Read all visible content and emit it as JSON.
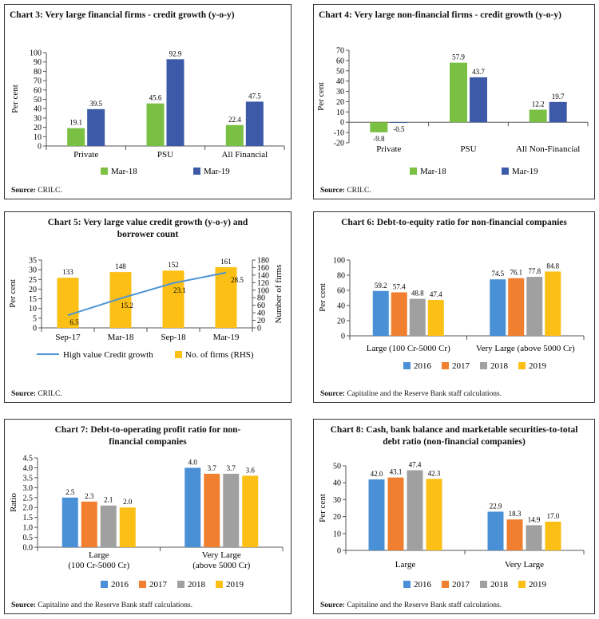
{
  "chart_data": [
    {
      "type": "bar",
      "title": "Chart 3: Very large financial firms - credit growth (y-o-y)",
      "ylabel": "Per cent",
      "ylim": [
        0,
        100
      ],
      "yticks": [
        "0",
        "10",
        "20",
        "30",
        "40",
        "50",
        "60",
        "70",
        "80",
        "90",
        "100"
      ],
      "categories": [
        "Private",
        "PSU",
        "All Financial"
      ],
      "series": [
        {
          "name": "Mar-18",
          "color": "#7ac143",
          "values": [
            19.1,
            45.6,
            22.4
          ],
          "labels": [
            "19.1",
            "45.6",
            "22.4"
          ]
        },
        {
          "name": "Mar-19",
          "color": "#3c5aa8",
          "values": [
            39.5,
            92.9,
            47.5
          ],
          "labels": [
            "39.5",
            "92.9",
            "47.5"
          ]
        }
      ],
      "legend": "bottom",
      "source_label": "Source:",
      "source_text": "CRILC."
    },
    {
      "type": "bar",
      "title": "Chart 4: Very large non-financial firms - credit growth (y-o-y)",
      "ylabel": "Per cent",
      "ylim": [
        -20,
        70
      ],
      "yticks": [
        "-20",
        "-10",
        "0",
        "10",
        "20",
        "30",
        "40",
        "50",
        "60",
        "70"
      ],
      "categories": [
        "Private",
        "PSU",
        "All Non-Financial"
      ],
      "series": [
        {
          "name": "Mar-18",
          "color": "#7ac143",
          "values": [
            -9.8,
            57.9,
            12.2
          ],
          "labels": [
            "-9.8",
            "57.9",
            "12.2"
          ]
        },
        {
          "name": "Mar-19",
          "color": "#3c5aa8",
          "values": [
            -0.5,
            43.7,
            19.7
          ],
          "labels": [
            "-0.5",
            "43.7",
            "19.7"
          ]
        }
      ],
      "legend": "bottom",
      "source_label": "Source:",
      "source_text": "CRILC."
    },
    {
      "type": "bar+line",
      "title": "Chart 5: Very large value credit growth (y-o-y) and borrower count",
      "ylabel": "Per cent",
      "y2label": "Number of firms",
      "ylim": [
        0,
        35
      ],
      "y2lim": [
        0,
        180
      ],
      "yticks": [
        "0",
        "5",
        "10",
        "15",
        "20",
        "25",
        "30",
        "35"
      ],
      "y2ticks": [
        "0",
        "20",
        "40",
        "60",
        "80",
        "100",
        "120",
        "140",
        "160",
        "180"
      ],
      "categories": [
        "Sep-17",
        "Mar-18",
        "Sep-18",
        "Mar-19"
      ],
      "bars": {
        "name": "No. of firms (RHS)",
        "color": "#fbbf15",
        "values": [
          133,
          148,
          152,
          161
        ],
        "labels": [
          "133",
          "148",
          "152",
          "161"
        ]
      },
      "line": {
        "name": "High value Credit growth",
        "color": "#4f94d4",
        "values": [
          6.5,
          15.2,
          23.1,
          28.5
        ],
        "labels": [
          "6.5",
          "15.2",
          "23.1",
          "28.5"
        ]
      },
      "legend": "bottom",
      "source_label": "Source:",
      "source_text": "CRILC."
    },
    {
      "type": "bar",
      "title": "Chart 6: Debt-to-equity ratio for non-financial companies",
      "ylabel": "Per cent",
      "ylim": [
        0,
        100
      ],
      "yticks": [
        "0",
        "20",
        "40",
        "60",
        "80",
        "100"
      ],
      "categories": [
        "Large (100 Cr-5000 Cr)",
        "Very Large  (above 5000 Cr)"
      ],
      "series": [
        {
          "name": "2016",
          "color": "#4a90d6",
          "values": [
            59.2,
            74.5
          ],
          "labels": [
            "59.2",
            "74.5"
          ]
        },
        {
          "name": "2017",
          "color": "#f07f2f",
          "values": [
            57.4,
            76.1
          ],
          "labels": [
            "57.4",
            "76.1"
          ]
        },
        {
          "name": "2018",
          "color": "#a0a0a0",
          "values": [
            48.8,
            77.8
          ],
          "labels": [
            "48.8",
            "77.8"
          ]
        },
        {
          "name": "2019",
          "color": "#fbbf15",
          "values": [
            47.4,
            84.8
          ],
          "labels": [
            "47.4",
            "84.8"
          ]
        }
      ],
      "legend": "bottom",
      "source_label": "Source:",
      "source_text": "Capitaline and the Reserve Bank staff calculations."
    },
    {
      "type": "bar",
      "title": "Chart 7: Debt-to-operating profit ratio for non-financial companies",
      "ylabel": "Ratio",
      "ylim": [
        0,
        4.5
      ],
      "yticks": [
        "0.0",
        "0.5",
        "1.0",
        "1.5",
        "2.0",
        "2.5",
        "3.0",
        "3.5",
        "4.0",
        "4.5"
      ],
      "categories": [
        "Large",
        "Very Large"
      ],
      "category_sublabels": [
        "(100 Cr-5000 Cr)",
        "(above 5000 Cr)"
      ],
      "series": [
        {
          "name": "2016",
          "color": "#4a90d6",
          "values": [
            2.5,
            4.0
          ],
          "labels": [
            "2.5",
            "4.0"
          ]
        },
        {
          "name": "2017",
          "color": "#f07f2f",
          "values": [
            2.3,
            3.7
          ],
          "labels": [
            "2.3",
            "3.7"
          ]
        },
        {
          "name": "2018",
          "color": "#a0a0a0",
          "values": [
            2.1,
            3.7
          ],
          "labels": [
            "2.1",
            "3.7"
          ]
        },
        {
          "name": "2019",
          "color": "#fbbf15",
          "values": [
            2.0,
            3.6
          ],
          "labels": [
            "2.0",
            "3.6"
          ]
        }
      ],
      "legend": "bottom",
      "source_label": "Source:",
      "source_text": "Capitaline and the Reserve Bank staff calculations."
    },
    {
      "type": "bar",
      "title": "Chart 8: Cash, bank balance and marketable securities-to-total debt ratio (non-financial companies)",
      "ylabel": "Per cent",
      "ylim": [
        0,
        50
      ],
      "yticks": [
        "0",
        "10",
        "20",
        "30",
        "40",
        "50"
      ],
      "categories": [
        "Large",
        "Very Large"
      ],
      "series": [
        {
          "name": "2016",
          "color": "#4a90d6",
          "values": [
            42.0,
            22.9
          ],
          "labels": [
            "42.0",
            "22.9"
          ]
        },
        {
          "name": "2017",
          "color": "#f07f2f",
          "values": [
            43.1,
            18.3
          ],
          "labels": [
            "43.1",
            "18.3"
          ]
        },
        {
          "name": "2018",
          "color": "#a0a0a0",
          "values": [
            47.4,
            14.9
          ],
          "labels": [
            "47.4",
            "14.9"
          ]
        },
        {
          "name": "2019",
          "color": "#fbbf15",
          "values": [
            42.3,
            17.0
          ],
          "labels": [
            "42.3",
            "17.0"
          ]
        }
      ],
      "legend": "bottom",
      "source_label": "Source:",
      "source_text": "Capitaline and the Reserve Bank staff calculations."
    }
  ]
}
